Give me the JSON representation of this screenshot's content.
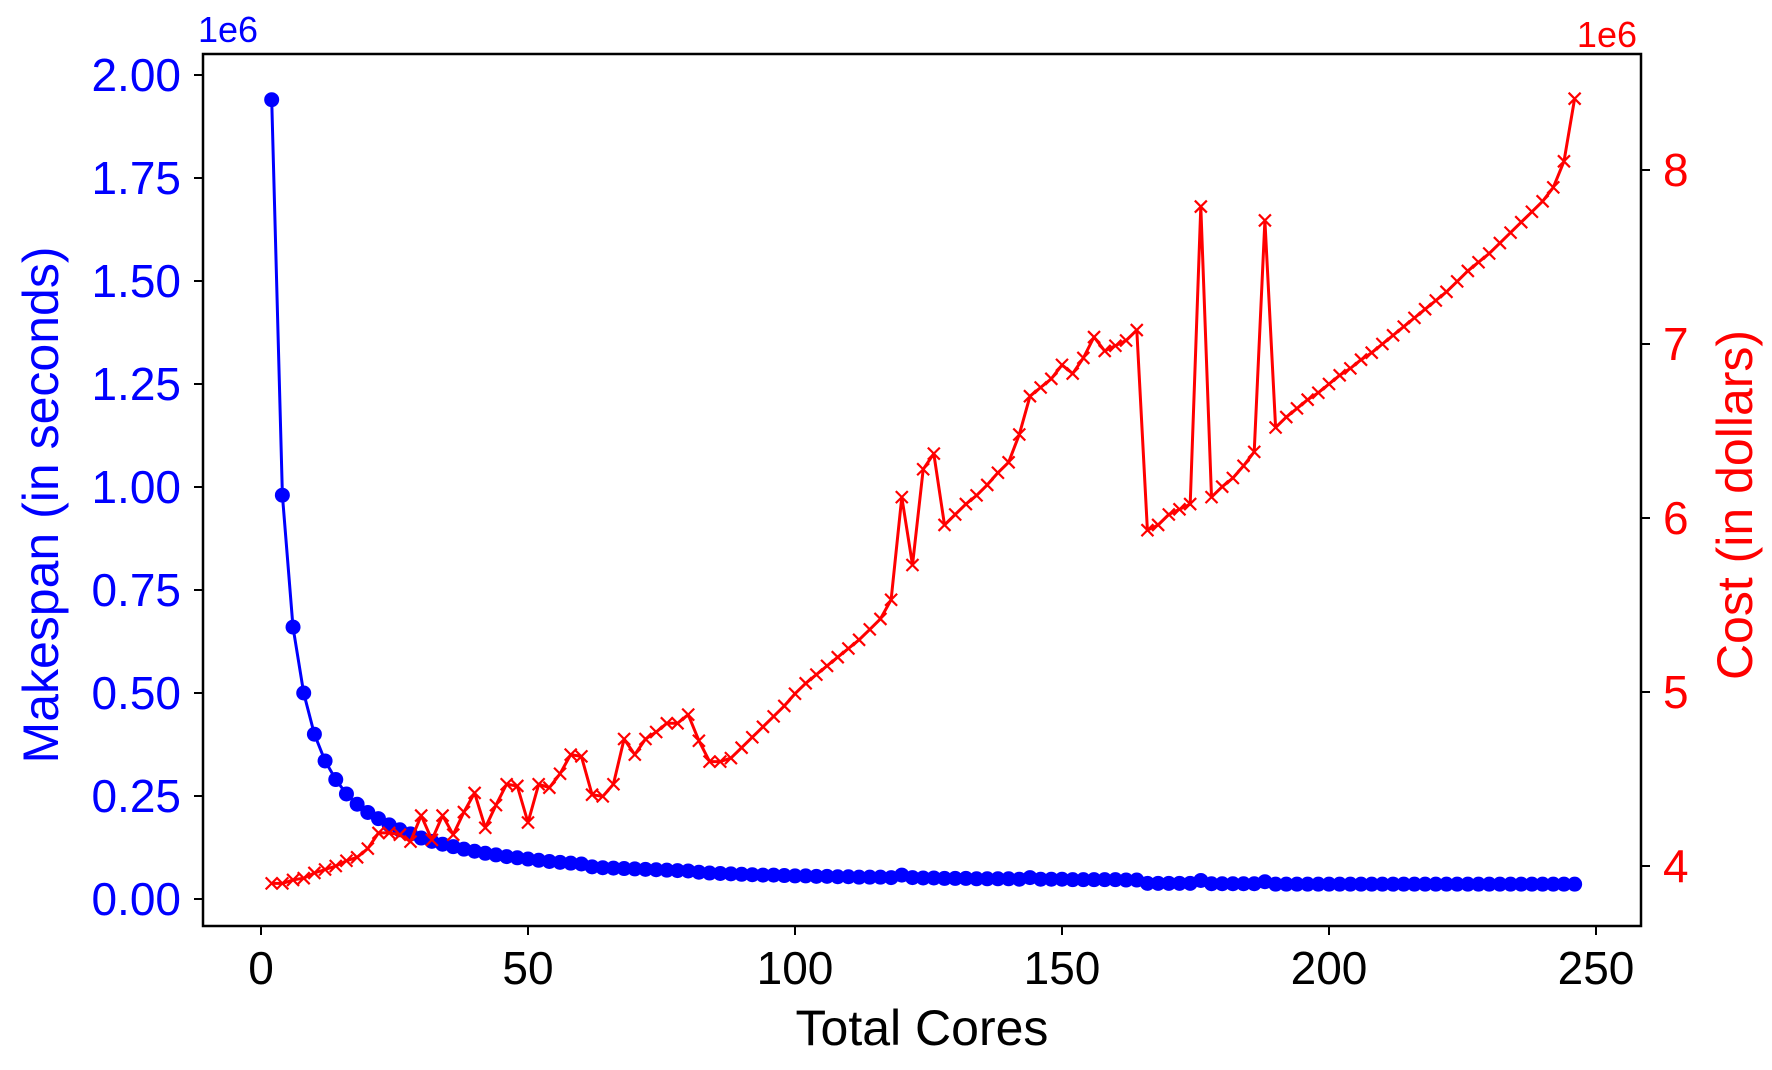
{
  "chart_data": {
    "type": "line",
    "title": "",
    "xlabel": "Total Cores",
    "xlim": [
      -10,
      260
    ],
    "xticks": [
      0,
      50,
      100,
      150,
      200,
      250
    ],
    "grid": false,
    "legend": null,
    "y_left": {
      "label": "Makespan (in seconds)",
      "color": "#0000ff",
      "offset_text": "1e6",
      "ylim": [
        -0.1,
        2.04
      ],
      "ticks": [
        "0.00",
        "0.25",
        "0.50",
        "0.75",
        "1.00",
        "1.25",
        "1.50",
        "1.75",
        "2.00"
      ],
      "tick_values": [
        0,
        0.25,
        0.5,
        0.75,
        1.0,
        1.25,
        1.5,
        1.75,
        2.0
      ]
    },
    "y_right": {
      "label": "Cost (in dollars)",
      "color": "#ff0000",
      "offset_text": "1e6",
      "ylim": [
        3.7,
        8.7
      ],
      "ticks": [
        "4",
        "5",
        "6",
        "7",
        "8"
      ],
      "tick_values": [
        4,
        5,
        6,
        7,
        8
      ]
    },
    "x": [
      2,
      4,
      6,
      8,
      10,
      12,
      14,
      16,
      18,
      20,
      22,
      24,
      26,
      28,
      30,
      32,
      34,
      36,
      38,
      40,
      42,
      44,
      46,
      48,
      50,
      52,
      54,
      56,
      58,
      60,
      62,
      64,
      66,
      68,
      70,
      72,
      74,
      76,
      78,
      80,
      82,
      84,
      86,
      88,
      90,
      92,
      94,
      96,
      98,
      100,
      102,
      104,
      106,
      108,
      110,
      112,
      114,
      116,
      118,
      120,
      122,
      124,
      126,
      128,
      130,
      132,
      134,
      136,
      138,
      140,
      142,
      144,
      146,
      148,
      150,
      152,
      154,
      156,
      158,
      160,
      162,
      164,
      166,
      168,
      170,
      172,
      174,
      176,
      178,
      180,
      182,
      184,
      186,
      188,
      190,
      192,
      194,
      196,
      198,
      200,
      202,
      204,
      206,
      208,
      210,
      212,
      214,
      216,
      218,
      220,
      222,
      224,
      226,
      228,
      230,
      232,
      234,
      236,
      238,
      240,
      242,
      244,
      246
    ],
    "series": [
      {
        "name": "Makespan",
        "axis": "left",
        "unit_scale": "1e6",
        "color": "#0000ff",
        "marker": "o",
        "values": [
          1.94,
          0.98,
          0.66,
          0.5,
          0.4,
          0.335,
          0.29,
          0.255,
          0.23,
          0.21,
          0.195,
          0.18,
          0.168,
          0.158,
          0.148,
          0.14,
          0.133,
          0.127,
          0.121,
          0.116,
          0.111,
          0.107,
          0.103,
          0.1,
          0.097,
          0.094,
          0.091,
          0.089,
          0.087,
          0.085,
          0.078,
          0.076,
          0.075,
          0.074,
          0.073,
          0.072,
          0.071,
          0.07,
          0.069,
          0.068,
          0.065,
          0.063,
          0.062,
          0.061,
          0.06,
          0.059,
          0.058,
          0.058,
          0.057,
          0.056,
          0.056,
          0.055,
          0.055,
          0.054,
          0.054,
          0.053,
          0.053,
          0.053,
          0.052,
          0.058,
          0.052,
          0.051,
          0.051,
          0.05,
          0.05,
          0.05,
          0.049,
          0.049,
          0.049,
          0.049,
          0.048,
          0.052,
          0.048,
          0.048,
          0.048,
          0.047,
          0.047,
          0.047,
          0.047,
          0.047,
          0.046,
          0.046,
          0.038,
          0.038,
          0.038,
          0.038,
          0.038,
          0.045,
          0.037,
          0.037,
          0.037,
          0.037,
          0.037,
          0.042,
          0.036,
          0.036,
          0.036,
          0.036,
          0.036,
          0.036,
          0.036,
          0.036,
          0.036,
          0.036,
          0.036,
          0.036,
          0.036,
          0.036,
          0.036,
          0.036,
          0.036,
          0.036,
          0.036,
          0.036,
          0.036,
          0.036,
          0.036,
          0.036,
          0.036,
          0.036,
          0.036,
          0.036,
          0.036
        ]
      },
      {
        "name": "Cost",
        "axis": "right",
        "unit_scale": "1e6",
        "color": "#ff0000",
        "marker": "x",
        "values": [
          3.9,
          3.9,
          3.92,
          3.93,
          3.96,
          3.98,
          4.0,
          4.03,
          4.05,
          4.1,
          4.19,
          4.19,
          4.18,
          4.14,
          4.29,
          4.15,
          4.29,
          4.18,
          4.31,
          4.42,
          4.22,
          4.35,
          4.47,
          4.46,
          4.25,
          4.47,
          4.45,
          4.53,
          4.64,
          4.63,
          4.41,
          4.4,
          4.47,
          4.73,
          4.64,
          4.73,
          4.77,
          4.82,
          4.82,
          4.87,
          4.72,
          4.6,
          4.6,
          4.62,
          4.68,
          4.74,
          4.8,
          4.86,
          4.92,
          4.99,
          5.05,
          5.1,
          5.15,
          5.2,
          5.25,
          5.3,
          5.36,
          5.42,
          5.53,
          6.12,
          5.73,
          6.28,
          6.37,
          5.96,
          6.02,
          6.08,
          6.13,
          6.19,
          6.26,
          6.32,
          6.48,
          6.7,
          6.75,
          6.8,
          6.88,
          6.83,
          6.92,
          7.04,
          6.96,
          6.99,
          7.02,
          7.08,
          5.93,
          5.96,
          6.02,
          6.05,
          6.08,
          7.79,
          6.12,
          6.18,
          6.23,
          6.3,
          6.38,
          7.71,
          6.52,
          6.58,
          6.63,
          6.68,
          6.72,
          6.77,
          6.82,
          6.86,
          6.91,
          6.95,
          7.0,
          7.05,
          7.1,
          7.15,
          7.2,
          7.25,
          7.3,
          7.36,
          7.42,
          7.47,
          7.52,
          7.58,
          7.64,
          7.7,
          7.76,
          7.82,
          7.9,
          8.05,
          8.41
        ]
      }
    ]
  }
}
